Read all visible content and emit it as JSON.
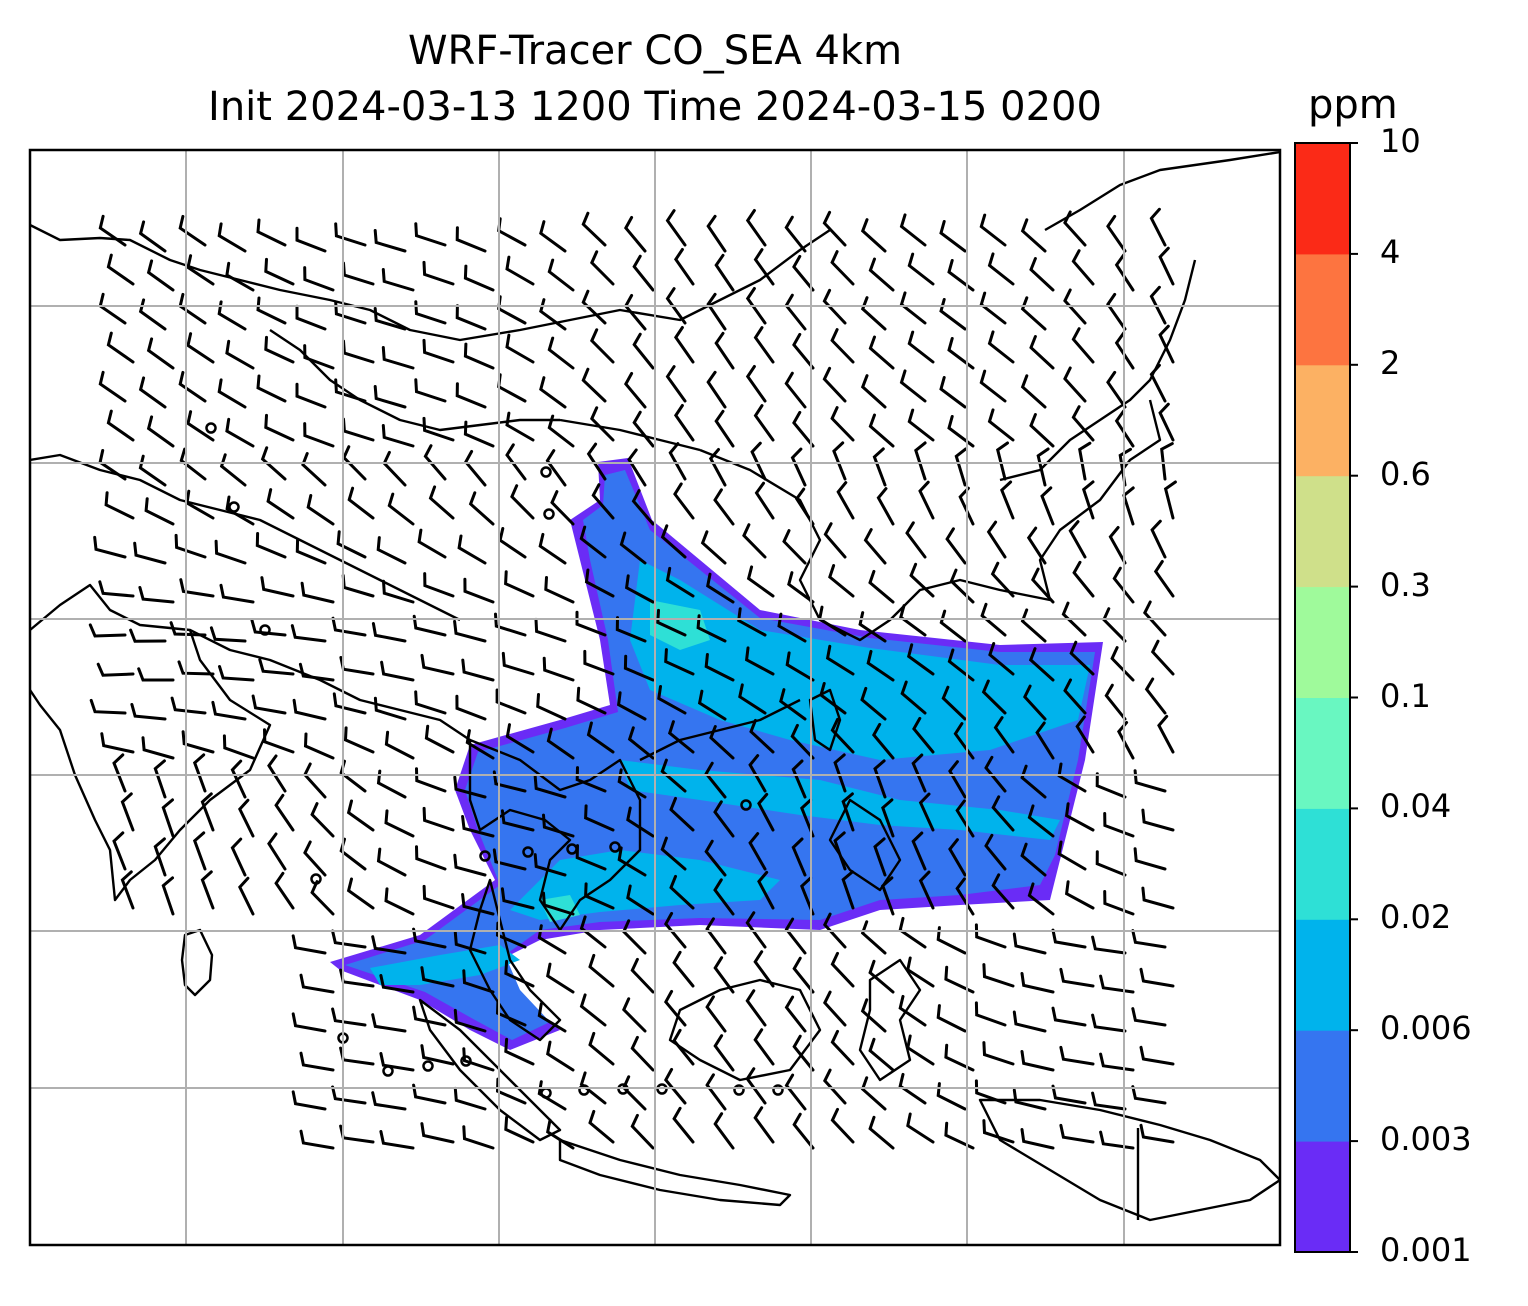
{
  "figure": {
    "title_line1": "WRF-Tracer CO_SEA 4km",
    "title_line2": "Init 2024-03-13 1200 Time 2024-03-15 0200"
  },
  "colorbar": {
    "unit": "ppm",
    "levels": [
      "0.001",
      "0.003",
      "0.006",
      "0.02",
      "0.04",
      "0.1",
      "0.3",
      "0.6",
      "2",
      "4",
      "10"
    ],
    "colors": [
      "#6a2cf6",
      "#3575f0",
      "#00b3ec",
      "#2ee0d6",
      "#69f7c1",
      "#9ffa9b",
      "#cfe08a",
      "#fcb163",
      "#fd7440",
      "#fb2a17"
    ]
  },
  "map": {
    "gridlines": true,
    "coastlines": true,
    "wind_barbs": true,
    "plume_color_dominant": "#3575f0"
  }
}
